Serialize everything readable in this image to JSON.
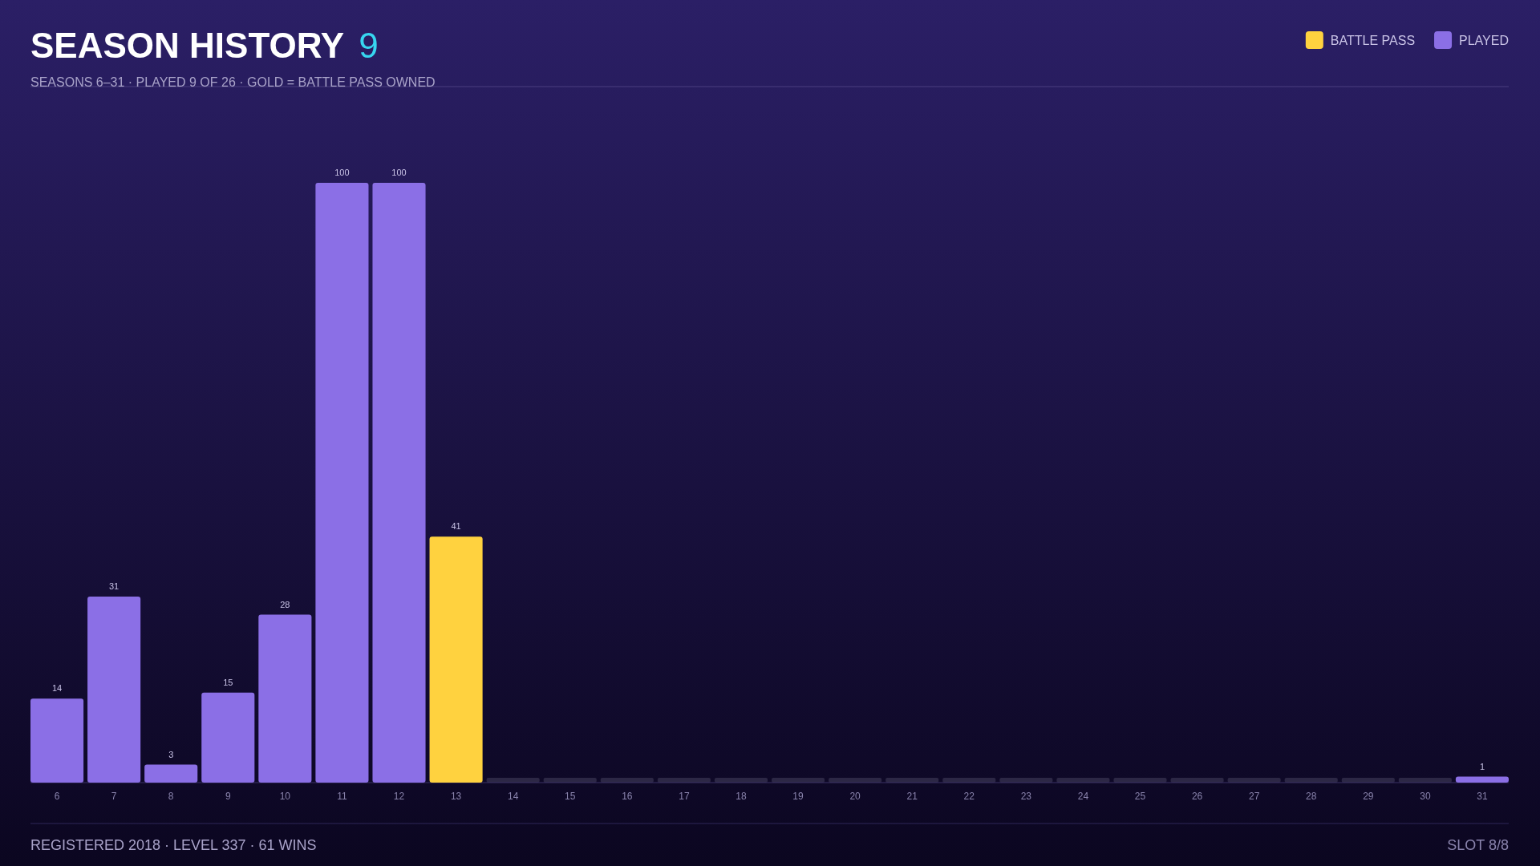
{
  "chart_data": {
    "type": "bar",
    "title": "SEASON HISTORY",
    "subtitle": "SEASONS 6–31 · PLAYED 9 OF 26 · GOLD = BATTLE PASS OWNED",
    "annotations": [
      "9",
      "REGISTERED 2018 · LEVEL 337 · 61 WINS",
      "SLOT 8/8"
    ],
    "categories": [
      "6",
      "7",
      "8",
      "9",
      "10",
      "11",
      "12",
      "13",
      "14",
      "15",
      "16",
      "17",
      "18",
      "19",
      "20",
      "21",
      "22",
      "23",
      "24",
      "25",
      "26",
      "27",
      "28",
      "29",
      "30",
      "31"
    ],
    "series": [
      {
        "name": "BATTLE PASS",
        "color": "#ffd23f",
        "values": [
          null,
          null,
          null,
          null,
          null,
          null,
          null,
          41,
          null,
          null,
          null,
          null,
          null,
          null,
          null,
          null,
          null,
          null,
          null,
          null,
          null,
          null,
          null,
          null,
          null,
          null
        ]
      },
      {
        "name": "PLAYED",
        "color": "#8b6fe6",
        "values": [
          14,
          31,
          3,
          15,
          28,
          100,
          100,
          null,
          null,
          null,
          null,
          null,
          null,
          null,
          null,
          null,
          null,
          null,
          null,
          null,
          null,
          null,
          null,
          null,
          null,
          1
        ]
      }
    ],
    "data_labels": true,
    "legend": "top right"
  }
}
